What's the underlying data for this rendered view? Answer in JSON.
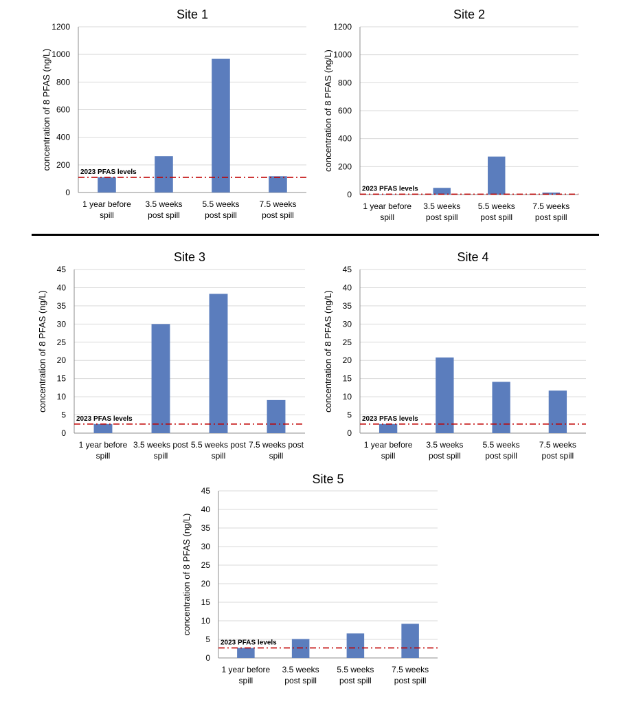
{
  "colors": {
    "bar": "#5b7dbd",
    "reference_line": "#c00000",
    "grid": "#d9d9d9",
    "axis": "#000000"
  },
  "chart_data": [
    {
      "type": "bar",
      "title": "Site 1",
      "ylabel": "concentration of 8 PFAS (ng/L)",
      "categories": [
        [
          "1 year before",
          "spill"
        ],
        [
          "3.5 weeks",
          "post spill"
        ],
        [
          "5.5 weeks",
          "post spill"
        ],
        [
          "7.5 weeks",
          "post spill"
        ]
      ],
      "values": [
        110,
        263,
        968,
        118
      ],
      "ylim": [
        0,
        1200
      ],
      "yticks": [
        0,
        200,
        400,
        600,
        800,
        1000,
        1200
      ],
      "reference": {
        "label": "2023 PFAS levels",
        "value": 110
      },
      "grid": true
    },
    {
      "type": "bar",
      "title": "Site 2",
      "ylabel": "concentration of 8 PFAS (ng/L)",
      "categories": [
        [
          "1 year before",
          "spill"
        ],
        [
          "3.5 weeks",
          "post spill"
        ],
        [
          "5.5 weeks",
          "post spill"
        ],
        [
          "7.5 weeks",
          "post spill"
        ]
      ],
      "values": [
        2,
        48,
        272,
        14
      ],
      "ylim": [
        0,
        1200
      ],
      "yticks": [
        0,
        200,
        400,
        600,
        800,
        1000,
        1200
      ],
      "reference": {
        "label": "2023 PFAS levels",
        "value": 3
      },
      "grid": true
    },
    {
      "type": "bar",
      "title": "Site 3",
      "ylabel": "concentration of 8 PFAS (ng/L)",
      "categories": [
        [
          "1 year before",
          "spill"
        ],
        [
          "3.5 weeks post",
          "spill"
        ],
        [
          "5.5 weeks post",
          "spill"
        ],
        [
          "7.5 weeks post",
          "spill"
        ]
      ],
      "values": [
        2.5,
        30,
        38.3,
        9.1
      ],
      "ylim": [
        0,
        45
      ],
      "yticks": [
        0,
        5,
        10,
        15,
        20,
        25,
        30,
        35,
        40,
        45
      ],
      "reference": {
        "label": "2023 PFAS levels",
        "value": 2.5
      },
      "grid": true
    },
    {
      "type": "bar",
      "title": "Site 4",
      "ylabel": "concentration of 8 PFAS (ng/L)",
      "categories": [
        [
          "1 year before",
          "spill"
        ],
        [
          "3.5 weeks",
          "post spill"
        ],
        [
          "5.5 weeks",
          "post spill"
        ],
        [
          "7.5 weeks",
          "post spill"
        ]
      ],
      "values": [
        2.5,
        20.8,
        14.1,
        11.7
      ],
      "ylim": [
        0,
        45
      ],
      "yticks": [
        0,
        5,
        10,
        15,
        20,
        25,
        30,
        35,
        40,
        45
      ],
      "reference": {
        "label": "2023 PFAS levels",
        "value": 2.5
      },
      "grid": true
    },
    {
      "type": "bar",
      "title": "Site 5",
      "ylabel": "concentration of 8 PFAS (ng/L)",
      "categories": [
        [
          "1 year before",
          "spill"
        ],
        [
          "3.5 weeks",
          "post spill"
        ],
        [
          "5.5 weeks",
          "post spill"
        ],
        [
          "7.5 weeks",
          "post spill"
        ]
      ],
      "values": [
        2.7,
        5.1,
        6.6,
        9.2
      ],
      "ylim": [
        0,
        45
      ],
      "yticks": [
        0,
        5,
        10,
        15,
        20,
        25,
        30,
        35,
        40,
        45
      ],
      "reference": {
        "label": "2023 PFAS levels",
        "value": 2.7
      },
      "grid": true
    }
  ]
}
